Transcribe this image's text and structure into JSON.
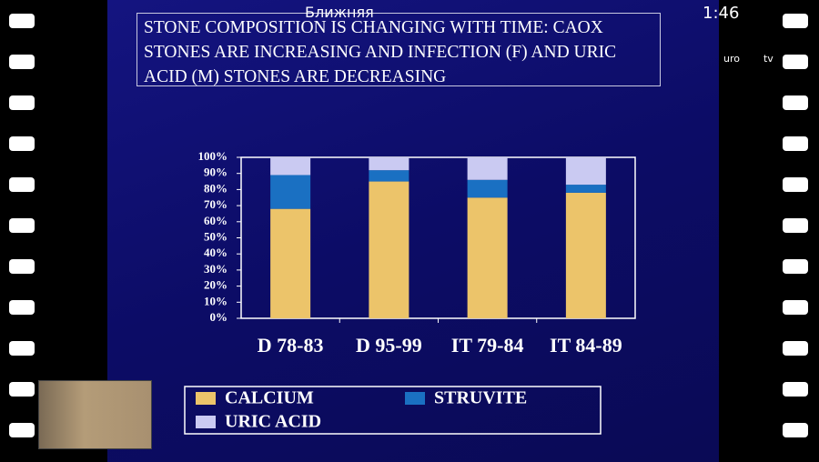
{
  "overlay": {
    "label": "Ближняя",
    "time": "1:46",
    "logo_left": "uro",
    "logo_right": "tv"
  },
  "chart_data": {
    "type": "stacked_bar",
    "title": "STONE COMPOSITION IS CHANGING WITH TIME: CAOX STONES ARE INCREASING AND INFECTION (F) AND URIC ACID (M) STONES ARE DECREASING",
    "categories": [
      "D 78-83",
      "D 95-99",
      "IT 79-84",
      "IT 84-89"
    ],
    "series": [
      {
        "name": "CALCIUM",
        "color": "#ecc46a",
        "values": [
          68,
          85,
          75,
          78
        ]
      },
      {
        "name": "STRUVITE",
        "color": "#1a70c2",
        "values": [
          21,
          7,
          11,
          5
        ]
      },
      {
        "name": "URIC ACID",
        "color": "#cacaf2",
        "values": [
          11,
          8,
          14,
          17
        ]
      }
    ],
    "ylim": [
      0,
      100
    ],
    "yticks": [
      {
        "value": 0,
        "label": "0%"
      },
      {
        "value": 10,
        "label": "10%"
      },
      {
        "value": 20,
        "label": "20%"
      },
      {
        "value": 30,
        "label": "30%"
      },
      {
        "value": 40,
        "label": "40%"
      },
      {
        "value": 50,
        "label": "50%"
      },
      {
        "value": 60,
        "label": "60%"
      },
      {
        "value": 70,
        "label": "70%"
      },
      {
        "value": 80,
        "label": "80%"
      },
      {
        "value": 90,
        "label": "90%"
      },
      {
        "value": 100,
        "label": "100%"
      }
    ],
    "grid": false
  }
}
